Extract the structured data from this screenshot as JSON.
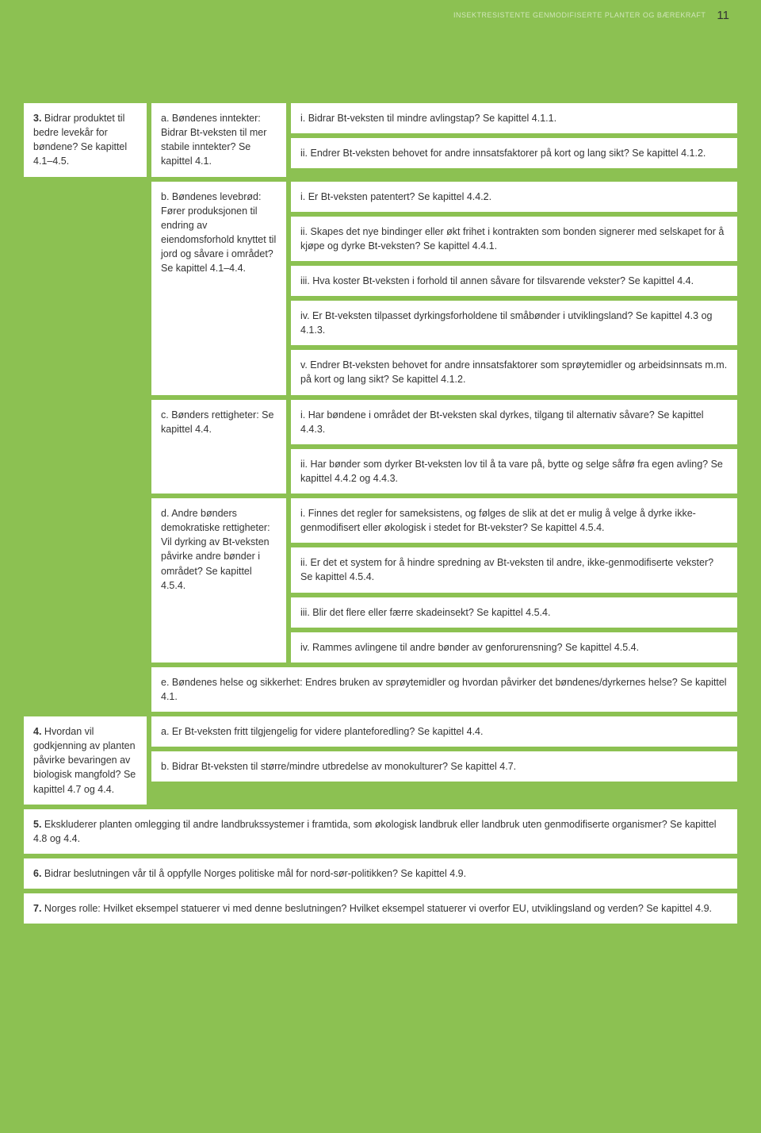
{
  "header": {
    "running_title": "INSEKTRESISTENTE GENMODIFISERTE PLANTER OG BÆREKRAFT",
    "page_number": "11"
  },
  "colors": {
    "page_bg": "#8cc152",
    "cell_bg": "#ffffff",
    "text": "#333333",
    "header_text": "#ffffff"
  },
  "section3": {
    "col_a": {
      "lead": "3.",
      "text": " Bidrar produktet til bedre levekår for bøndene? Se kapittel 4.1–4.5."
    },
    "a": {
      "label": "a. Bøndenes inntekter: Bidrar Bt-veksten til mer stabile inntekter? Se kapittel 4.1.",
      "i": "i. Bidrar Bt-veksten til mindre avlingstap? Se kapittel 4.1.1.",
      "ii": "ii. Endrer Bt-veksten behovet for andre innsatsfaktorer på kort og lang sikt? Se kapittel 4.1.2."
    },
    "b": {
      "label": "b. Bøndenes levebrød: Fører produksjonen til endring av eiendomsforhold knyttet til jord og såvare i området? Se kapittel 4.1–4.4.",
      "i": "i. Er Bt-veksten patentert? Se kapittel 4.4.2.",
      "ii": "ii. Skapes det nye bindinger eller økt frihet i kontrakten som bonden signerer med selskapet for å kjøpe og dyrke Bt-veksten? Se kapittel 4.4.1.",
      "iii": "iii. Hva koster Bt-veksten i forhold til annen såvare for tilsvarende vekster? Se kapittel 4.4.",
      "iv": "iv. Er Bt-veksten tilpasset dyrkingsforholdene til småbønder i utviklingsland? Se kapittel 4.3 og 4.1.3.",
      "v": "v. Endrer Bt-veksten behovet for andre innsatsfaktorer som sprøytemidler og arbeidsinnsats m.m. på kort og lang sikt? Se kapittel 4.1.2."
    },
    "c": {
      "label": "c. Bønders rettigheter: Se kapittel 4.4.",
      "i": "i. Har bøndene i området der Bt-veksten skal dyrkes, tilgang til alternativ såvare? Se kapittel 4.4.3.",
      "ii": "ii. Har bønder som dyrker Bt-veksten lov til å ta vare på, bytte og selge såfrø fra egen avling? Se kapittel 4.4.2 og 4.4.3."
    },
    "d": {
      "label": "d. Andre bønders demokratiske rettigheter: Vil dyrking av Bt-veksten påvirke andre bønder i området? Se kapittel 4.5.4.",
      "i": "i. Finnes det regler for sameksistens, og følges de slik at det er mulig å velge å dyrke ikke-genmodifisert eller økologisk i stedet for Bt-vekster? Se kapittel 4.5.4.",
      "ii": "ii. Er det et system for å hindre spredning av Bt-veksten til andre, ikke-genmodifiserte vekster? Se kapittel 4.5.4.",
      "iii": "iii. Blir det flere eller færre skadeinsekt? Se kapittel 4.5.4.",
      "iv": "iv. Rammes avlingene til andre bønder av genforurensning? Se kapittel 4.5.4."
    },
    "e": "e. Bøndenes helse og sikkerhet: Endres bruken av sprøytemidler og hvordan påvirker det bøndenes/dyrkernes helse? Se kapittel 4.1."
  },
  "section4": {
    "col_a": {
      "lead": "4.",
      "text": " Hvordan vil godkjenning av planten påvirke bevaringen av biologisk mangfold? Se kapittel 4.7 og 4.4."
    },
    "a": "a. Er Bt-veksten fritt tilgjengelig for videre planteforedling? Se kapittel 4.4.",
    "b": "b. Bidrar Bt-veksten til større/mindre utbredelse av monokulturer? Se kapittel 4.7."
  },
  "section5": {
    "lead": "5.",
    "text": " Ekskluderer planten omlegging til andre landbrukssystemer i framtida, som økologisk landbruk eller landbruk uten genmodifiserte organismer? Se kapittel 4.8 og 4.4."
  },
  "section6": {
    "lead": "6.",
    "text": " Bidrar beslutningen vår til å oppfylle Norges politiske mål for nord-sør-politikken? Se kapittel 4.9."
  },
  "section7": {
    "lead": "7.",
    "text": " Norges rolle: Hvilket eksempel statuerer vi med denne beslutningen? Hvilket eksempel statuerer vi overfor EU, utviklingsland og verden? Se kapittel 4.9."
  }
}
